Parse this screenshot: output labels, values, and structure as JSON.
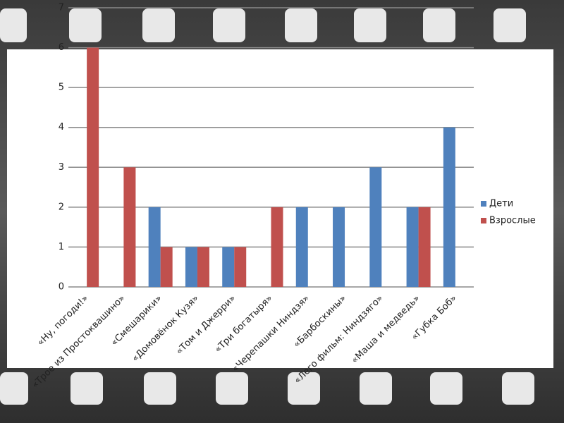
{
  "chart_data": {
    "type": "bar",
    "categories": [
      "«Ну, погоди!»",
      "«Трое из Простоквашино»",
      "«Смешарики»",
      "«Домовёнок Кузя»",
      "«Том и Джерри»",
      "«Три богатыря»",
      "«Черепашки Ниндзя»",
      "«Барбоскины»",
      "«Лего фильм: Ниндзяго»",
      "«Маша и медведь»",
      "«Губка Боб»"
    ],
    "series": [
      {
        "name": "Дети",
        "color": "#4f81bd",
        "values": [
          0,
          0,
          2,
          1,
          1,
          0,
          2,
          2,
          3,
          2,
          4
        ]
      },
      {
        "name": "Взрослые",
        "color": "#c0504d",
        "values": [
          6,
          3,
          1,
          1,
          1,
          2,
          0,
          0,
          0,
          2,
          0
        ]
      }
    ],
    "ylim": [
      0,
      7
    ],
    "yticks": [
      0,
      1,
      2,
      3,
      4,
      5,
      6,
      7
    ],
    "grid": true,
    "legend": "right"
  }
}
